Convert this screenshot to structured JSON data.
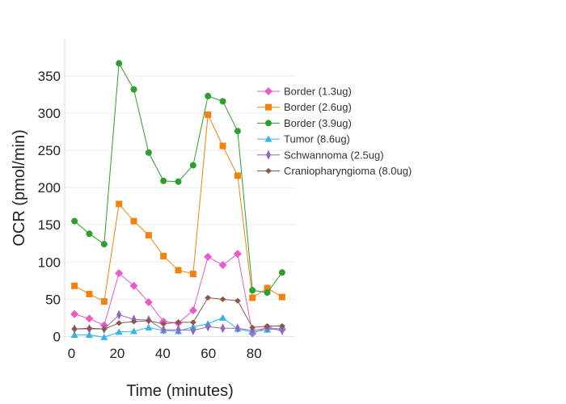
{
  "chart_data": {
    "type": "line",
    "title": "",
    "xlabel": "Time (minutes)",
    "ylabel": "OCR (pmol/min)",
    "xlim": [
      -3,
      98
    ],
    "ylim": [
      -5,
      400
    ],
    "xticks": [
      0,
      20,
      40,
      60,
      80
    ],
    "yticks": [
      0,
      50,
      100,
      150,
      200,
      250,
      300,
      350
    ],
    "grid": "horizontal",
    "legend_position": "top-right",
    "x": [
      1.3,
      7.8,
      14.3,
      20.8,
      27.3,
      33.8,
      40.3,
      46.8,
      53.3,
      59.8,
      66.3,
      72.8,
      79.3,
      85.8,
      92.3
    ],
    "series": [
      {
        "name": "Border (1.3ug)",
        "color": "#e85bc8",
        "marker": "diamond",
        "values": [
          30,
          24,
          15,
          85,
          68,
          46,
          20,
          18,
          35,
          107,
          96,
          111,
          4,
          12,
          10
        ]
      },
      {
        "name": "Border (2.6ug)",
        "color": "#f5820f",
        "marker": "square",
        "values": [
          68,
          57,
          47,
          178,
          155,
          136,
          108,
          89,
          84,
          298,
          256,
          216,
          52,
          65,
          53
        ]
      },
      {
        "name": "Border (3.9ug)",
        "color": "#2ca02c",
        "marker": "circle",
        "values": [
          155,
          138,
          124,
          367,
          332,
          247,
          209,
          208,
          230,
          323,
          316,
          276,
          62,
          59,
          86
        ]
      },
      {
        "name": "Tumor (8.6ug)",
        "color": "#33b6e6",
        "marker": "triangle",
        "values": [
          2,
          2,
          -1,
          6,
          7,
          12,
          8,
          7,
          13,
          17,
          25,
          10,
          6,
          9,
          11
        ]
      },
      {
        "name": "Schwannoma (2.5ug)",
        "color": "#9467bd",
        "marker": "thin-diamond",
        "values": [
          10,
          10,
          10,
          29,
          23,
          22,
          9,
          9,
          8,
          13,
          11,
          11,
          8,
          11,
          8
        ]
      },
      {
        "name": "Craniopharyngioma (8.0ug)",
        "color": "#8c564b",
        "marker": "small-diamond",
        "values": [
          10,
          11,
          10,
          18,
          20,
          21,
          17,
          19,
          19,
          52,
          50,
          48,
          12,
          14,
          14
        ]
      }
    ]
  }
}
